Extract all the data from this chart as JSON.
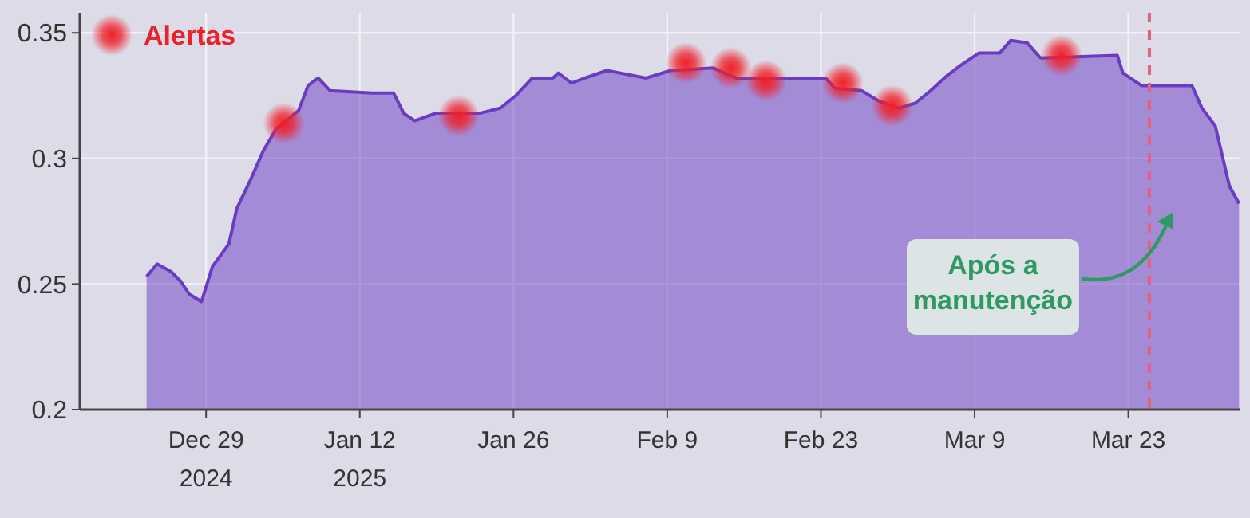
{
  "chart_data": {
    "type": "area",
    "xlim": [
      "2024-12-17T12:00",
      "2025-04-02T05:00"
    ],
    "ylim": [
      0.2,
      0.358
    ],
    "xticks": [
      {
        "value": "2024-12-29",
        "label": "Dec 29\n2024"
      },
      {
        "value": "2025-01-12",
        "label": "Jan 12\n2025"
      },
      {
        "value": "2025-01-26",
        "label": "Jan 26"
      },
      {
        "value": "2025-02-09",
        "label": "Feb 9"
      },
      {
        "value": "2025-02-23",
        "label": "Feb 23"
      },
      {
        "value": "2025-03-09",
        "label": "Mar 9"
      },
      {
        "value": "2025-03-23",
        "label": "Mar 23"
      }
    ],
    "yticks": [
      0.2,
      0.25,
      0.3,
      0.35
    ],
    "grid": true,
    "legend": "top left",
    "series": [
      {
        "color": "#6a3cc4",
        "x": [
          "2024-12-23T14:00",
          "2024-12-24T13:00",
          "2024-12-25T19:00",
          "2024-12-26T17:00",
          "2024-12-27T11:00",
          "2024-12-28T14:00",
          "2024-12-29T14:00",
          "2024-12-31T02:00",
          "2024-12-31T19:00",
          "2025-01-02T00:00",
          "2025-01-03T05:00",
          "2025-01-04T10:00",
          "2025-01-06T10:00",
          "2025-01-07T07:00",
          "2025-01-08T05:00",
          "2025-01-09T07:00",
          "2025-01-13T02:00",
          "2025-01-15T02:00",
          "2025-01-16T00:00",
          "2025-01-17T00:00",
          "2025-01-18T22:00",
          "2025-01-22T22:00",
          "2025-01-24T19:00",
          "2025-01-26T05:00",
          "2025-01-27T17:00",
          "2025-01-29T14:00",
          "2025-01-30T02:00",
          "2025-01-31T07:00",
          "2025-02-01T12:00",
          "2025-02-03T12:00",
          "2025-02-07T02:00",
          "2025-02-09T07:00",
          "2025-02-13T05:00",
          "2025-02-15T07:00",
          "2025-02-23T10:00",
          "2025-02-24T07:00",
          "2025-02-26T17:00",
          "2025-02-28T05:00",
          "2025-03-02T02:00",
          "2025-03-03T14:00",
          "2025-03-05T00:00",
          "2025-03-06T12:00",
          "2025-03-07T17:00",
          "2025-03-09T10:00",
          "2025-03-11T07:00",
          "2025-03-12T07:00",
          "2025-03-13T19:00",
          "2025-03-15T00:00",
          "2025-03-22T00:00",
          "2025-03-22T12:00",
          "2025-03-24T05:00",
          "2025-03-28T19:00",
          "2025-03-29T17:00",
          "2025-03-30T22:00",
          "2025-04-01T05:00",
          "2025-04-02T02:00"
        ],
        "values": [
          0.253,
          0.258,
          0.255,
          0.251,
          0.246,
          0.243,
          0.257,
          0.266,
          0.28,
          0.291,
          0.303,
          0.312,
          0.319,
          0.329,
          0.332,
          0.327,
          0.326,
          0.326,
          0.318,
          0.315,
          0.318,
          0.318,
          0.32,
          0.325,
          0.332,
          0.332,
          0.334,
          0.33,
          0.332,
          0.335,
          0.332,
          0.335,
          0.336,
          0.332,
          0.332,
          0.328,
          0.327,
          0.323,
          0.32,
          0.322,
          0.327,
          0.333,
          0.337,
          0.342,
          0.342,
          0.347,
          0.346,
          0.34,
          0.341,
          0.334,
          0.329,
          0.329,
          0.32,
          0.313,
          0.289,
          0.282
        ]
      },
      {
        "type": "scatter",
        "name": "Alertas",
        "color": "#f0202a",
        "marker": "circle",
        "x": [
          "2025-01-05T02:00",
          "2025-01-21T00:00",
          "2025-02-10T17:00",
          "2025-02-14T19:00",
          "2025-02-18T00:00",
          "2025-02-25T00:00",
          "2025-03-01T12:00",
          "2025-03-16T22:00"
        ],
        "values": [
          0.314,
          0.317,
          0.338,
          0.336,
          0.331,
          0.33,
          0.321,
          0.341
        ]
      }
    ],
    "ref_lines": [
      {
        "axis": "x",
        "value": "2025-03-24T22:00",
        "label": "Após a manutenção",
        "color": "#e8607a",
        "line_style": "dashed"
      }
    ]
  }
}
